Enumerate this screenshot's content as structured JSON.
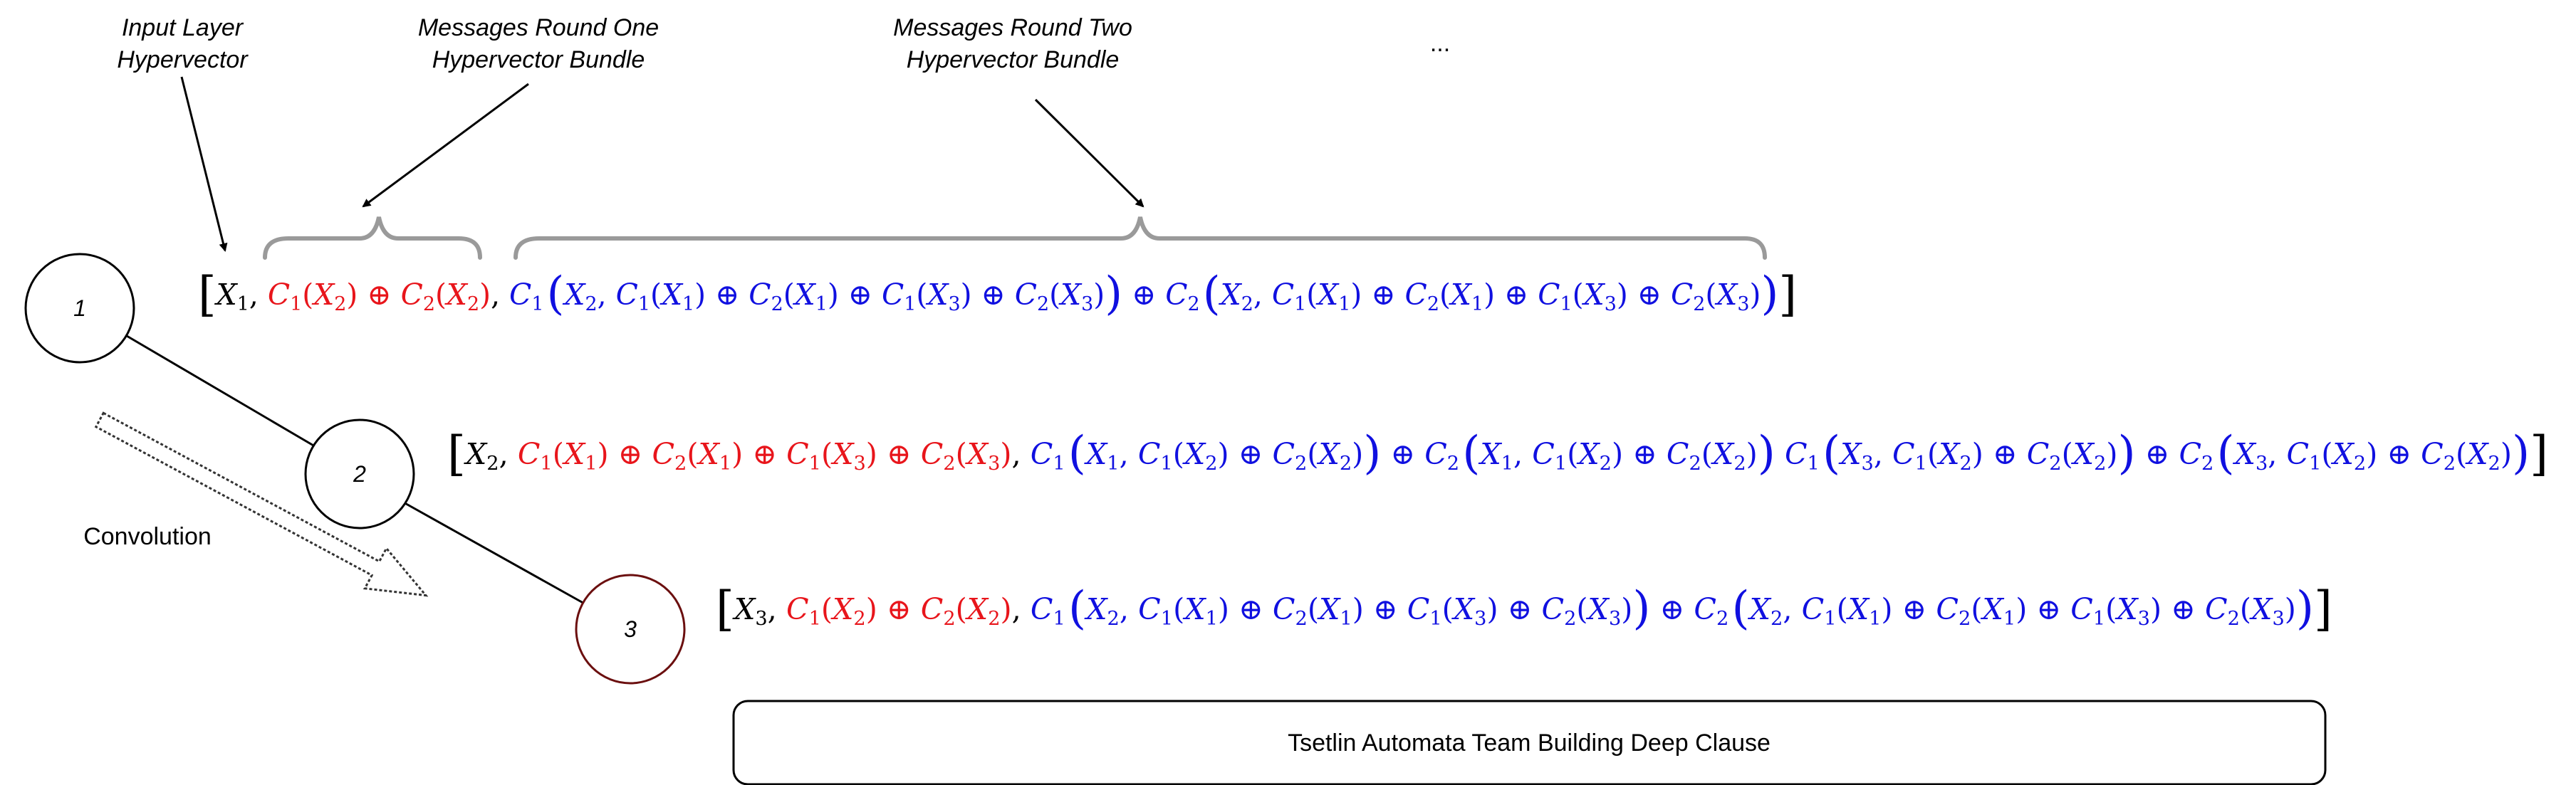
{
  "labels": {
    "input_layer_line1": "Input Layer",
    "input_layer_line2": "Hypervector",
    "round_one_line1": "Messages Round One",
    "round_one_line2": "Hypervector Bundle",
    "round_two_line1": "Messages Round Two",
    "round_two_line2": "Hypervector Bundle",
    "ellipsis": "...",
    "convolution": "Convolution",
    "caption_box": "Tsetlin Automata Team Building Deep Clause"
  },
  "nodes": [
    {
      "label": "1"
    },
    {
      "label": "2"
    },
    {
      "label": "3"
    }
  ],
  "colors": {
    "input": "#000000",
    "round_one": "#e8151b",
    "round_two": "#1010e0",
    "brace": "#9a9a9a",
    "node3_border": "#6b0f0f"
  },
  "equations": {
    "row1": {
      "x": "X",
      "xi": "1",
      "r1": [
        {
          "fn": "C",
          "fi": "1",
          "arg": "X",
          "ai": "2"
        },
        {
          "fn": "C",
          "fi": "2",
          "arg": "X",
          "ai": "2"
        }
      ],
      "r2": [
        {
          "fn": "C",
          "fi": "1",
          "arg": "X",
          "ai": "2",
          "inner": [
            [
              "1",
              "1"
            ],
            [
              "2",
              "1"
            ],
            [
              "1",
              "3"
            ],
            [
              "2",
              "3"
            ]
          ]
        },
        {
          "fn": "C",
          "fi": "2",
          "arg": "X",
          "ai": "2",
          "inner": [
            [
              "1",
              "1"
            ],
            [
              "2",
              "1"
            ],
            [
              "1",
              "3"
            ],
            [
              "2",
              "3"
            ]
          ]
        }
      ]
    },
    "row2": {
      "x": "X",
      "xi": "2",
      "r1": [
        {
          "fn": "C",
          "fi": "1",
          "arg": "X",
          "ai": "1"
        },
        {
          "fn": "C",
          "fi": "2",
          "arg": "X",
          "ai": "1"
        },
        {
          "fn": "C",
          "fi": "1",
          "arg": "X",
          "ai": "3"
        },
        {
          "fn": "C",
          "fi": "2",
          "arg": "X",
          "ai": "3"
        }
      ],
      "r2": [
        {
          "fn": "C",
          "fi": "1",
          "arg": "X",
          "ai": "1",
          "inner": [
            [
              "1",
              "2"
            ],
            [
              "2",
              "2"
            ]
          ]
        },
        {
          "fn": "C",
          "fi": "2",
          "arg": "X",
          "ai": "1",
          "inner": [
            [
              "1",
              "2"
            ],
            [
              "2",
              "2"
            ]
          ]
        },
        {
          "fn": "C",
          "fi": "1",
          "arg": "X",
          "ai": "3",
          "inner": [
            [
              "1",
              "2"
            ],
            [
              "2",
              "2"
            ]
          ]
        },
        {
          "fn": "C",
          "fi": "2",
          "arg": "X",
          "ai": "3",
          "inner": [
            [
              "1",
              "2"
            ],
            [
              "2",
              "2"
            ]
          ]
        }
      ]
    },
    "row3": {
      "x": "X",
      "xi": "3",
      "r1": [
        {
          "fn": "C",
          "fi": "1",
          "arg": "X",
          "ai": "2"
        },
        {
          "fn": "C",
          "fi": "2",
          "arg": "X",
          "ai": "2"
        }
      ],
      "r2": [
        {
          "fn": "C",
          "fi": "1",
          "arg": "X",
          "ai": "2",
          "inner": [
            [
              "1",
              "1"
            ],
            [
              "2",
              "1"
            ],
            [
              "1",
              "3"
            ],
            [
              "2",
              "3"
            ]
          ]
        },
        {
          "fn": "C",
          "fi": "2",
          "arg": "X",
          "ai": "2",
          "inner": [
            [
              "1",
              "1"
            ],
            [
              "2",
              "1"
            ],
            [
              "1",
              "3"
            ],
            [
              "2",
              "3"
            ]
          ]
        }
      ]
    }
  }
}
